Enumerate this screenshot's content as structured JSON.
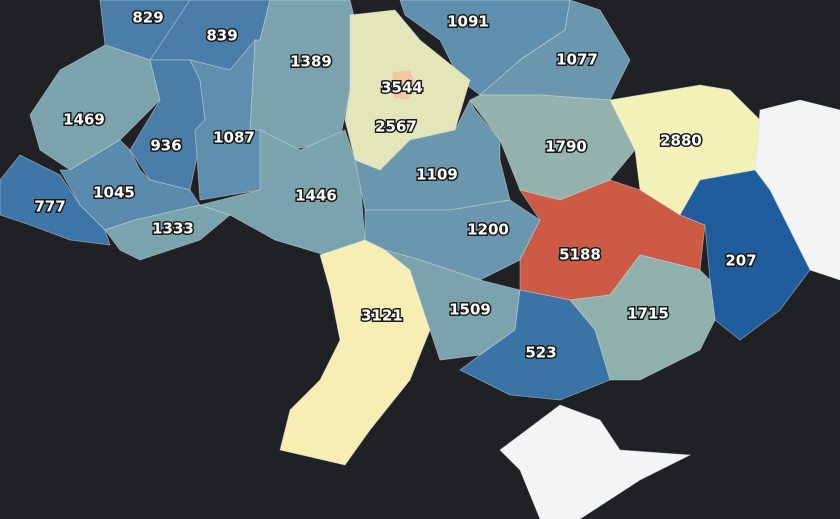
{
  "regions": [
    {
      "value": 829,
      "color": "#4a7ea8"
    },
    {
      "value": 839,
      "color": "#4a7ea8"
    },
    {
      "value": 1091,
      "color": "#5f8fae"
    },
    {
      "value": 1077,
      "color": "#6a97ad"
    },
    {
      "value": 1389,
      "color": "#7aa3ad"
    },
    {
      "value": 3544,
      "color": "#f0c9a0"
    },
    {
      "value": 2567,
      "color": "#e3e6b8"
    },
    {
      "value": 1469,
      "color": "#7aa3ad"
    },
    {
      "value": 936,
      "color": "#4a7ea8"
    },
    {
      "value": 1087,
      "color": "#5f8fae"
    },
    {
      "value": 1790,
      "color": "#93b2ab"
    },
    {
      "value": 2880,
      "color": "#f3f1b7"
    },
    {
      "value": 777,
      "color": "#3f76a8"
    },
    {
      "value": 1045,
      "color": "#5a8baf"
    },
    {
      "value": 1333,
      "color": "#7aa3ad"
    },
    {
      "value": 1446,
      "color": "#7aa3ad"
    },
    {
      "value": 1109,
      "color": "#6a97ad"
    },
    {
      "value": 1200,
      "color": "#6a97ad"
    },
    {
      "value": 5188,
      "color": "#cd5a45"
    },
    {
      "value": 207,
      "color": "#1f5d9c"
    },
    {
      "value": 3121,
      "color": "#f6eeb2"
    },
    {
      "value": 1509,
      "color": "#7aa3ad"
    },
    {
      "value": 1715,
      "color": "#8fb0ab"
    },
    {
      "value": 523,
      "color": "#3a73a6"
    }
  ]
}
